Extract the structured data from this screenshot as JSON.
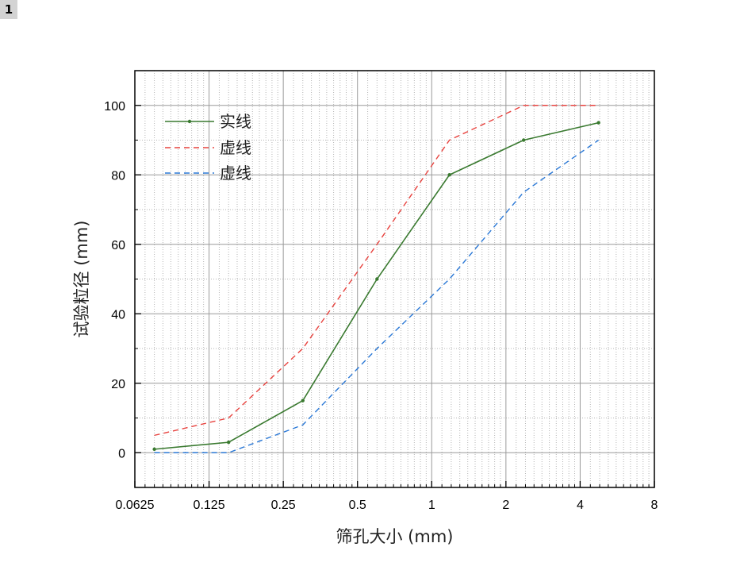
{
  "page_tag": "1",
  "chart_data": {
    "type": "line",
    "title": "",
    "xlabel": "筛孔大小 (mm)",
    "ylabel": "试验粒径 (mm)",
    "x_scale": "log2",
    "xlim": [
      0.0625,
      8
    ],
    "ylim": [
      -10,
      110
    ],
    "x_ticks": [
      0.0625,
      0.125,
      0.25,
      0.5,
      1,
      2,
      4,
      8
    ],
    "x_tick_labels": [
      "0.0625",
      "0.125",
      "0.25",
      "0.5",
      "1",
      "2",
      "4",
      "8"
    ],
    "y_ticks": [
      0,
      20,
      40,
      60,
      80,
      100
    ],
    "y_tick_labels": [
      "0",
      "20",
      "40",
      "60",
      "80",
      "100"
    ],
    "grid": true,
    "legend_position": "top-left",
    "series": [
      {
        "name": "实线",
        "color": "#3a7a30",
        "style": "solid",
        "markers": true,
        "x": [
          0.075,
          0.15,
          0.3,
          0.6,
          1.18,
          2.36,
          4.75
        ],
        "y": [
          1,
          3,
          15,
          50,
          80,
          90,
          95
        ]
      },
      {
        "name": "虚线",
        "color": "#e8433f",
        "style": "dashed",
        "markers": false,
        "x": [
          0.075,
          0.15,
          0.3,
          0.6,
          1.18,
          2.36,
          4.75
        ],
        "y": [
          5,
          10,
          30,
          60,
          90,
          100,
          100
        ]
      },
      {
        "name": "虚线",
        "color": "#2a78d6",
        "style": "dashed",
        "markers": false,
        "x": [
          0.075,
          0.15,
          0.3,
          0.6,
          1.18,
          2.36,
          4.75
        ],
        "y": [
          0,
          0,
          8,
          30,
          50,
          75,
          90
        ]
      }
    ]
  }
}
